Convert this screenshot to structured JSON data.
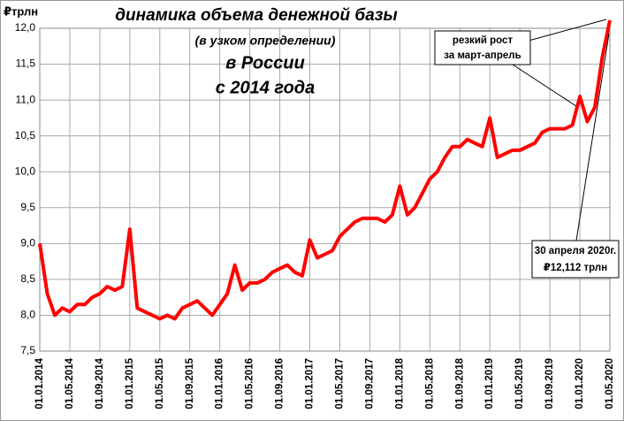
{
  "chart_data": {
    "type": "line",
    "title": [
      "динамика объема денежной базы",
      "(в узком определении)",
      "в России",
      "с 2014 года"
    ],
    "y_label": "₽трлн",
    "annotations": [
      [
        "резкий рост",
        "за март-апрель"
      ],
      [
        "30 апреля 2020г.",
        "₽12,112 трлн"
      ]
    ],
    "color": "#ff0000",
    "x": [
      "01.01.2014",
      "01.02.2014",
      "01.03.2014",
      "01.04.2014",
      "01.05.2014",
      "01.06.2014",
      "01.07.2014",
      "01.08.2014",
      "01.09.2014",
      "01.10.2014",
      "01.11.2014",
      "01.12.2014",
      "01.01.2015",
      "01.02.2015",
      "01.03.2015",
      "01.04.2015",
      "01.05.2015",
      "01.06.2015",
      "01.07.2015",
      "01.08.2015",
      "01.09.2015",
      "01.10.2015",
      "01.11.2015",
      "01.12.2015",
      "01.01.2016",
      "01.02.2016",
      "01.03.2016",
      "01.04.2016",
      "01.05.2016",
      "01.06.2016",
      "01.07.2016",
      "01.08.2016",
      "01.09.2016",
      "01.10.2016",
      "01.11.2016",
      "01.12.2016",
      "01.01.2017",
      "01.02.2017",
      "01.03.2017",
      "01.04.2017",
      "01.05.2017",
      "01.06.2017",
      "01.07.2017",
      "01.08.2017",
      "01.09.2017",
      "01.10.2017",
      "01.11.2017",
      "01.12.2017",
      "01.01.2018",
      "01.02.2018",
      "01.03.2018",
      "01.04.2018",
      "01.05.2018",
      "01.06.2018",
      "01.07.2018",
      "01.08.2018",
      "01.09.2018",
      "01.10.2018",
      "01.11.2018",
      "01.12.2018",
      "01.01.2019",
      "01.02.2019",
      "01.03.2019",
      "01.04.2019",
      "01.05.2019",
      "01.06.2019",
      "01.07.2019",
      "01.08.2019",
      "01.09.2019",
      "01.10.2019",
      "01.11.2019",
      "01.12.2019",
      "01.01.2020",
      "01.02.2020",
      "01.03.2020",
      "01.04.2020",
      "01.05.2020"
    ],
    "values": [
      9.0,
      8.3,
      8.0,
      8.1,
      8.05,
      8.15,
      8.15,
      8.25,
      8.3,
      8.4,
      8.35,
      8.4,
      9.2,
      8.1,
      8.05,
      8.0,
      7.95,
      8.0,
      7.95,
      8.1,
      8.15,
      8.2,
      8.1,
      8.0,
      8.15,
      8.3,
      8.7,
      8.35,
      8.45,
      8.45,
      8.5,
      8.6,
      8.65,
      8.7,
      8.6,
      8.55,
      9.05,
      8.8,
      8.85,
      8.9,
      9.1,
      9.2,
      9.3,
      9.35,
      9.35,
      9.35,
      9.3,
      9.4,
      9.8,
      9.4,
      9.5,
      9.7,
      9.9,
      10.0,
      10.2,
      10.35,
      10.35,
      10.45,
      10.4,
      10.35,
      10.75,
      10.2,
      10.25,
      10.3,
      10.3,
      10.35,
      10.4,
      10.55,
      10.6,
      10.6,
      10.6,
      10.65,
      11.05,
      10.7,
      10.9,
      11.6,
      12.112
    ],
    "xlim": [
      "01.01.2014",
      "01.05.2020"
    ],
    "xticks": [
      "01.01.2014",
      "01.05.2014",
      "01.09.2014",
      "01.01.2015",
      "01.05.2015",
      "01.09.2015",
      "01.01.2016",
      "01.05.2016",
      "01.09.2016",
      "01.01.2017",
      "01.05.2017",
      "01.09.2017",
      "01.01.2018",
      "01.05.2018",
      "01.09.2018",
      "01.01.2019",
      "01.05.2019",
      "01.09.2019",
      "01.01.2020",
      "01.05.2020"
    ],
    "ylim": [
      7.5,
      12.0
    ],
    "yticks": [
      {
        "value": 7.5,
        "label": "7,5"
      },
      {
        "value": 8.0,
        "label": "8,0"
      },
      {
        "value": 8.5,
        "label": "8,5"
      },
      {
        "value": 9.0,
        "label": "9,0"
      },
      {
        "value": 9.5,
        "label": "9,5"
      },
      {
        "value": 10.0,
        "label": "10,0"
      },
      {
        "value": 10.5,
        "label": "10,5"
      },
      {
        "value": 11.0,
        "label": "11,0"
      },
      {
        "value": 11.5,
        "label": "11,5"
      },
      {
        "value": 12.0,
        "label": "12,0"
      }
    ],
    "grid": true
  }
}
